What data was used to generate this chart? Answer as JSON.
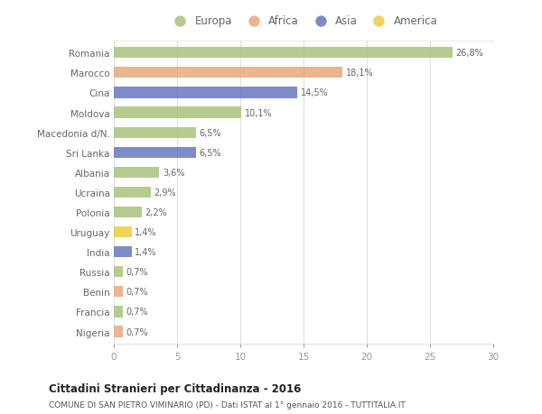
{
  "countries": [
    "Romania",
    "Marocco",
    "Cina",
    "Moldova",
    "Macedonia d/N.",
    "Sri Lanka",
    "Albania",
    "Ucraina",
    "Polonia",
    "Uruguay",
    "India",
    "Russia",
    "Benin",
    "Francia",
    "Nigeria"
  ],
  "values": [
    26.8,
    18.1,
    14.5,
    10.1,
    6.5,
    6.5,
    3.6,
    2.9,
    2.2,
    1.4,
    1.4,
    0.7,
    0.7,
    0.7,
    0.7
  ],
  "labels": [
    "26,8%",
    "18,1%",
    "14,5%",
    "10,1%",
    "6,5%",
    "6,5%",
    "3,6%",
    "2,9%",
    "2,2%",
    "1,4%",
    "1,4%",
    "0,7%",
    "0,7%",
    "0,7%",
    "0,7%"
  ],
  "continents": [
    "Europa",
    "Africa",
    "Asia",
    "Europa",
    "Europa",
    "Asia",
    "Europa",
    "Europa",
    "Europa",
    "America",
    "Asia",
    "Europa",
    "Africa",
    "Europa",
    "Africa"
  ],
  "colors": {
    "Europa": "#a8c47e",
    "Africa": "#e8a87c",
    "Asia": "#6878c0",
    "America": "#f0c840"
  },
  "xlim": [
    0,
    30
  ],
  "xticks": [
    0,
    5,
    10,
    15,
    20,
    25,
    30
  ],
  "title": "Cittadini Stranieri per Cittadinanza - 2016",
  "subtitle": "COMUNE DI SAN PIETRO VIMINARIO (PD) - Dati ISTAT al 1° gennaio 2016 - TUTTITALIA.IT",
  "background_color": "#ffffff",
  "plot_bg_color": "#f5f5f5",
  "grid_color": "#e0e0e0",
  "bar_height": 0.55,
  "legend_order": [
    "Europa",
    "Africa",
    "Asia",
    "America"
  ],
  "label_color": "#666666",
  "tick_color": "#999999"
}
